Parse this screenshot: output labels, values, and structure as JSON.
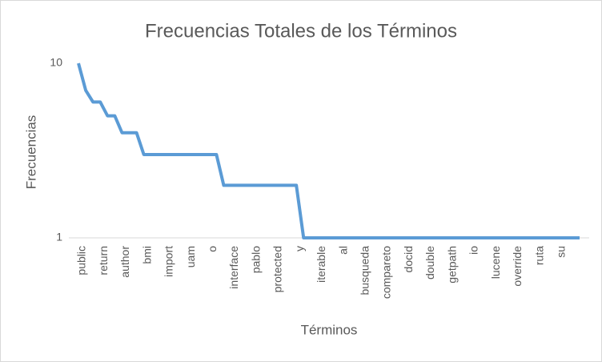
{
  "chart_data": {
    "type": "line",
    "title": "Frecuencias Totales de los Términos",
    "x_label": "Términos",
    "y_label": "Frecuencias",
    "categories": [
      "public",
      null,
      null,
      "return",
      null,
      null,
      "author",
      null,
      null,
      "bmi",
      null,
      null,
      "import",
      null,
      null,
      "uam",
      null,
      null,
      "o",
      null,
      null,
      "interface",
      null,
      null,
      "pablo",
      null,
      null,
      "protected",
      null,
      null,
      "y",
      null,
      null,
      "iterable",
      null,
      null,
      "al",
      null,
      null,
      "busqueda",
      null,
      null,
      "compareto",
      null,
      null,
      "docid",
      null,
      null,
      "double",
      null,
      null,
      "getpath",
      null,
      null,
      "io",
      null,
      null,
      "lucene",
      null,
      null,
      "override",
      null,
      null,
      "ruta",
      null,
      null,
      "su",
      null,
      null,
      null
    ],
    "values": [
      10,
      7,
      6,
      6,
      5,
      5,
      4,
      4,
      4,
      3,
      3,
      3,
      3,
      3,
      3,
      3,
      3,
      3,
      3,
      3,
      2,
      2,
      2,
      2,
      2,
      2,
      2,
      2,
      2,
      2,
      2,
      1,
      1,
      1,
      1,
      1,
      1,
      1,
      1,
      1,
      1,
      1,
      1,
      1,
      1,
      1,
      1,
      1,
      1,
      1,
      1,
      1,
      1,
      1,
      1,
      1,
      1,
      1,
      1,
      1,
      1,
      1,
      1,
      1,
      1,
      1,
      1,
      1,
      1,
      1
    ],
    "color": "#5b9bd5",
    "log_scale": true,
    "ylim": [
      1,
      10
    ],
    "yticks": [
      1,
      10
    ],
    "grid": false
  }
}
